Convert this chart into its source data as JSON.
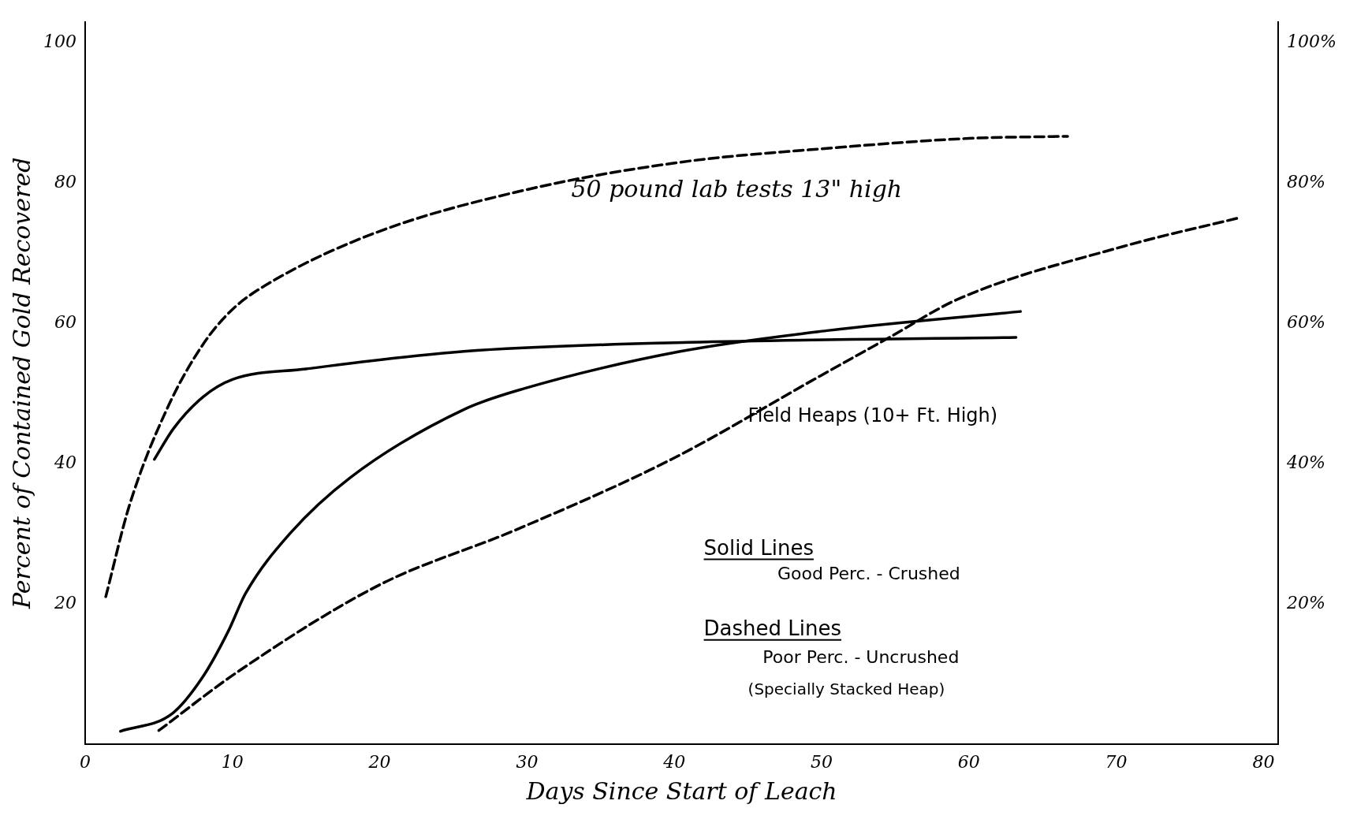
{
  "chart_data": {
    "type": "line",
    "xlabel": "Days Since Start of Leach",
    "ylabel": "Percent of Contained Gold Recovered",
    "xlim": [
      0,
      81
    ],
    "xticks": [
      0,
      10,
      20,
      30,
      40,
      50,
      60,
      70,
      80
    ],
    "ylim": [
      0,
      103
    ],
    "yticks": [
      20,
      40,
      60,
      80,
      100
    ],
    "y2lim": [
      0,
      103
    ],
    "y2ticks": [
      {
        "value": 20,
        "label": "20%"
      },
      {
        "value": 40,
        "label": "40%"
      },
      {
        "value": 60,
        "label": "60%"
      },
      {
        "value": 80,
        "label": "80%"
      },
      {
        "value": 100,
        "label": "100%"
      }
    ],
    "grid": false,
    "legend": false,
    "marker": "none",
    "series": [
      {
        "color": "#000000",
        "line_style": "dashed",
        "x": [
          1.4,
          3,
          5.6,
          8,
          10,
          12.7,
          19.8,
          29.8,
          40.4,
          50.5,
          60,
          66.7
        ],
        "values": [
          21,
          34,
          48,
          57,
          62,
          66,
          73,
          79,
          83,
          85,
          86.4,
          86.7
        ]
      },
      {
        "color": "#000000",
        "line_style": "solid",
        "x": [
          4.7,
          6,
          8,
          10,
          15,
          25.7,
          41,
          63.2
        ],
        "values": [
          40.6,
          45,
          49.5,
          52,
          53.5,
          56,
          57.3,
          58
        ]
      },
      {
        "color": "#000000",
        "line_style": "solid",
        "x": [
          2.4,
          5.9,
          8,
          9.7,
          10.9,
          13.9,
          18,
          25.7,
          29.8,
          40.4,
          50.5,
          63.5
        ],
        "values": [
          1.8,
          4.3,
          9.6,
          16,
          21.5,
          30,
          38,
          47.7,
          50.7,
          56,
          59,
          61.7
        ]
      },
      {
        "color": "#000000",
        "line_style": "dashed",
        "x": [
          5,
          10.3,
          20,
          29.2,
          39.8,
          49.9,
          54.6,
          59.3,
          70.5,
          78.2
        ],
        "values": [
          1.9,
          10.2,
          22.7,
          30.5,
          40.6,
          52.5,
          58,
          63.5,
          71,
          75
        ]
      }
    ],
    "annotations": [
      "50 pound lab tests 13\" high",
      "Field Heaps (10+ Ft. High)",
      "Solid Lines",
      "Good Perc. - Crushed",
      "Dashed Lines",
      "Poor Perc. - Uncrushed",
      "(Specially Stacked Heap)"
    ]
  }
}
